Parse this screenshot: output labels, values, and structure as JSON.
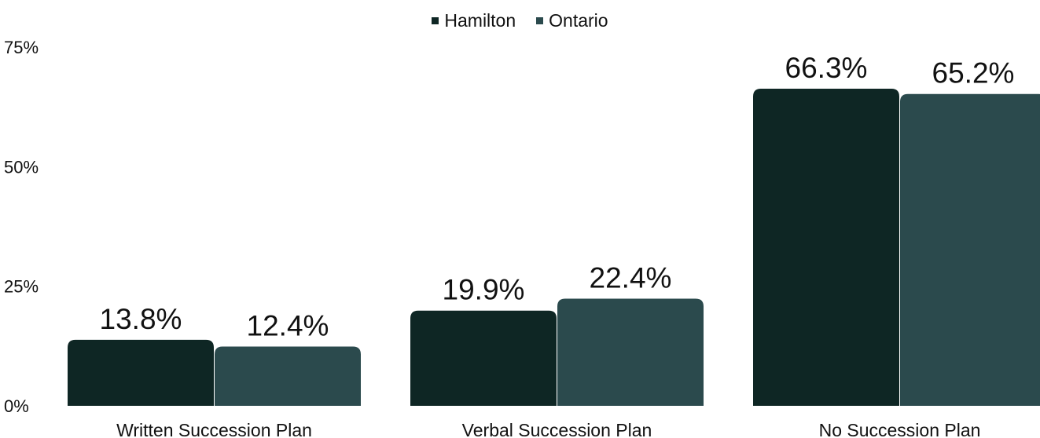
{
  "chart_data": {
    "type": "bar",
    "categories": [
      "Written Succession Plan",
      "Verbal Succession Plan",
      "No Succession Plan"
    ],
    "series": [
      {
        "name": "Hamilton",
        "values": [
          13.8,
          19.9,
          66.3
        ],
        "labels": [
          "13.8%",
          "19.9%",
          "66.3%"
        ],
        "color": "#0e2624"
      },
      {
        "name": "Ontario",
        "values": [
          12.4,
          22.4,
          65.2
        ],
        "labels": [
          "12.4%",
          "22.4%",
          "65.2%"
        ],
        "color": "#2b4a4d"
      }
    ],
    "yticks": [
      "0%",
      "25%",
      "50%",
      "75%"
    ],
    "ylim": [
      0,
      75
    ],
    "grid": false,
    "legend_position": "top-center"
  }
}
